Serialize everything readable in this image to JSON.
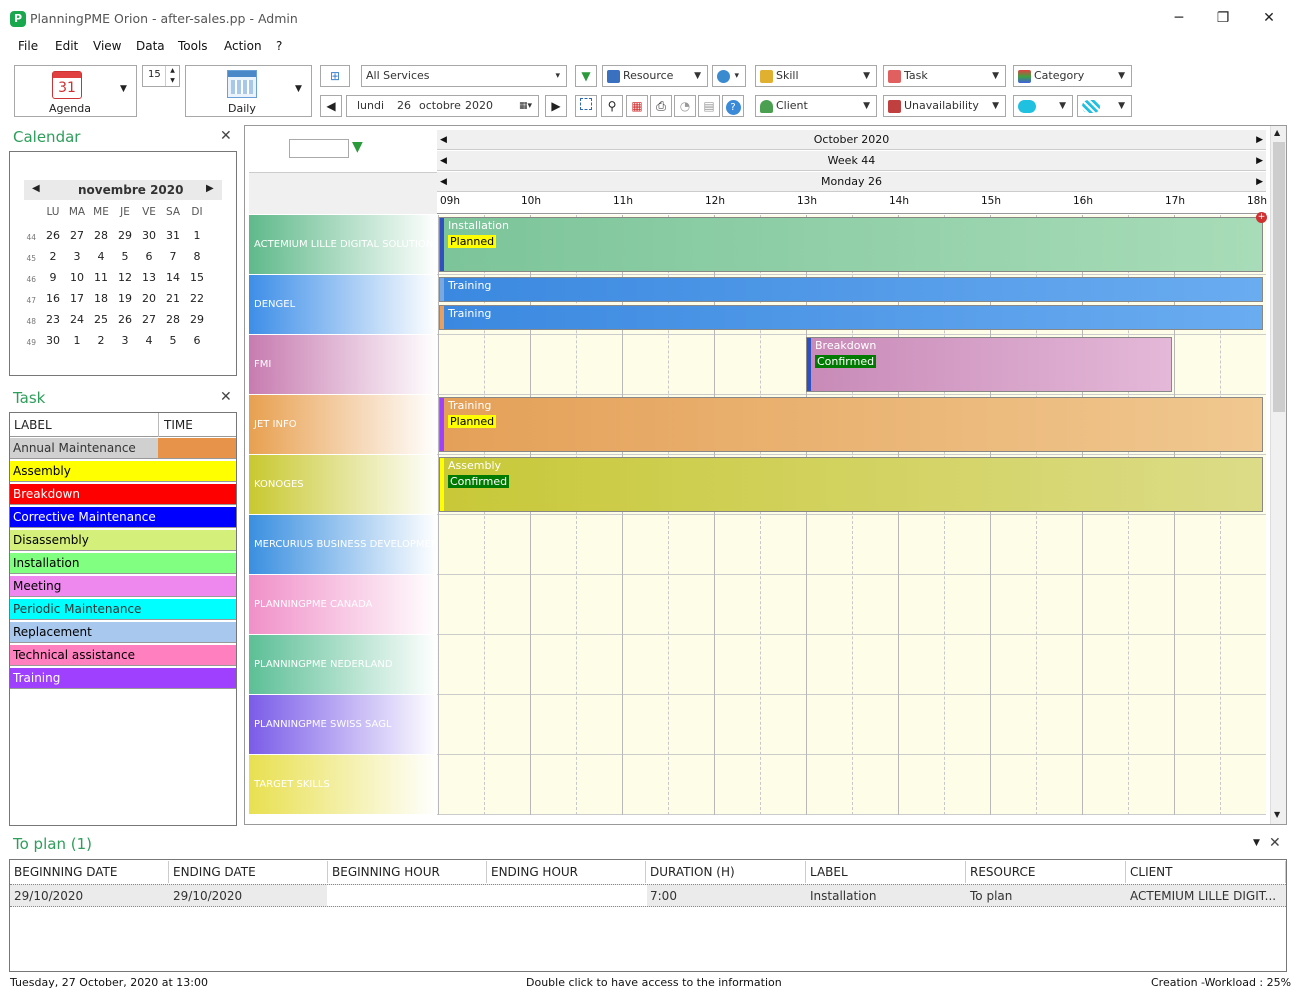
{
  "window": {
    "title": "PlanningPME Orion - after-sales.pp - Admin",
    "app_icon_letter": "P",
    "minimize": "─",
    "maximize": "❐",
    "close": "✕"
  },
  "menu": [
    "File",
    "Edit",
    "View",
    "Data",
    "Tools",
    "Action",
    "?"
  ],
  "toolbar": {
    "agenda_label": "Agenda",
    "agenda_day": "31",
    "spin_value": "15",
    "view_label": "Daily",
    "services": "All Services",
    "date_day_name": "lundi",
    "date_day": "26",
    "date_month": "octobre",
    "date_year": "2020",
    "resource": "Resource",
    "skill": "Skill",
    "client": "Client",
    "task": "Task",
    "unavailability": "Unavailability",
    "category": "Category"
  },
  "calendar_panel": {
    "title": "Calendar",
    "month": "novembre 2020",
    "dow": [
      "LU",
      "MA",
      "ME",
      "JE",
      "VE",
      "SA",
      "DI"
    ],
    "weeks": [
      {
        "wk": "44",
        "days": [
          "26",
          "27",
          "28",
          "29",
          "30",
          "31",
          "1"
        ]
      },
      {
        "wk": "45",
        "days": [
          "2",
          "3",
          "4",
          "5",
          "6",
          "7",
          "8"
        ]
      },
      {
        "wk": "46",
        "days": [
          "9",
          "10",
          "11",
          "12",
          "13",
          "14",
          "15"
        ]
      },
      {
        "wk": "47",
        "days": [
          "16",
          "17",
          "18",
          "19",
          "20",
          "21",
          "22"
        ]
      },
      {
        "wk": "48",
        "days": [
          "23",
          "24",
          "25",
          "26",
          "27",
          "28",
          "29"
        ]
      },
      {
        "wk": "49",
        "days": [
          "30",
          "1",
          "2",
          "3",
          "4",
          "5",
          "6"
        ]
      }
    ]
  },
  "task_panel": {
    "title": "Task",
    "col_label": "LABEL",
    "col_time": "TIME",
    "tasks": [
      {
        "label": "Annual Maintenance",
        "color": "#d0d0d0",
        "text": "#333333"
      },
      {
        "label": "Assembly",
        "color": "#ffff00",
        "text": "#000000"
      },
      {
        "label": "Breakdown",
        "color": "#ff0000",
        "text": "#ffffff"
      },
      {
        "label": "Corrective Maintenance",
        "color": "#0000ff",
        "text": "#ffffff"
      },
      {
        "label": "Disassembly",
        "color": "#d4f07a",
        "text": "#000000"
      },
      {
        "label": "Installation",
        "color": "#80ff80",
        "text": "#000000"
      },
      {
        "label": "Meeting",
        "color": "#ee88ee",
        "text": "#000000"
      },
      {
        "label": "Periodic Maintenance",
        "color": "#00ffff",
        "text": "#333333"
      },
      {
        "label": "Replacement",
        "color": "#a8c8ee",
        "text": "#000000"
      },
      {
        "label": "Technical assistance",
        "color": "#ff7fbf",
        "text": "#000000"
      },
      {
        "label": "Training",
        "color": "#a040ff",
        "text": "#ffffff"
      }
    ],
    "annual_time_color": "#e8934a"
  },
  "planning": {
    "month": "October 2020",
    "week": "Week 44",
    "day": "Monday 26",
    "hours": [
      "09h",
      "10h",
      "11h",
      "12h",
      "13h",
      "14h",
      "15h",
      "16h",
      "17h",
      "18h"
    ],
    "resources": [
      {
        "name": "ACTEMIUM LILLE DIGITAL SOLUTIONS",
        "color": "#5fb98a"
      },
      {
        "name": "DENGEL",
        "color": "#3d8ee8"
      },
      {
        "name": "FMI",
        "color": "#c77bb0"
      },
      {
        "name": "JET INFO",
        "color": "#e8a050"
      },
      {
        "name": "KONOGES",
        "color": "#c8c830"
      },
      {
        "name": "MERCURIUS BUSINESS DEVELOPMENT",
        "color": "#3a8fe0"
      },
      {
        "name": "PLANNINGPME CANADA",
        "color": "#f090c8"
      },
      {
        "name": "PLANNINGPME NEDERLAND",
        "color": "#5cbf96"
      },
      {
        "name": "PLANNINGPME SWISS SAGL",
        "color": "#7a5ce8"
      },
      {
        "name": "TARGET SKILLS",
        "color": "#e8e050"
      }
    ],
    "events": [
      {
        "label": "Installation",
        "status": "Planned"
      },
      {
        "label": "Training",
        "status": ""
      },
      {
        "label": "Training",
        "status": ""
      },
      {
        "label": "Breakdown",
        "status": "Confirmed"
      },
      {
        "label": "Training",
        "status": "Planned"
      },
      {
        "label": "Assembly",
        "status": "Confirmed"
      }
    ]
  },
  "to_plan": {
    "title": "To plan (1)",
    "headers": [
      "BEGINNING DATE",
      "ENDING DATE",
      "BEGINNING HOUR",
      "ENDING HOUR",
      "DURATION (H)",
      "LABEL",
      "RESOURCE",
      "CLIENT"
    ],
    "rows": [
      [
        "29/10/2020",
        "29/10/2020",
        "",
        "",
        "7:00",
        "Installation",
        "To plan",
        "ACTEMIUM LILLE DIGIT..."
      ]
    ]
  },
  "status_bar": {
    "left": "Tuesday, 27 October, 2020 at 13:00",
    "center": "Double click to have access to the information",
    "right": "Creation -Workload : 25%"
  }
}
